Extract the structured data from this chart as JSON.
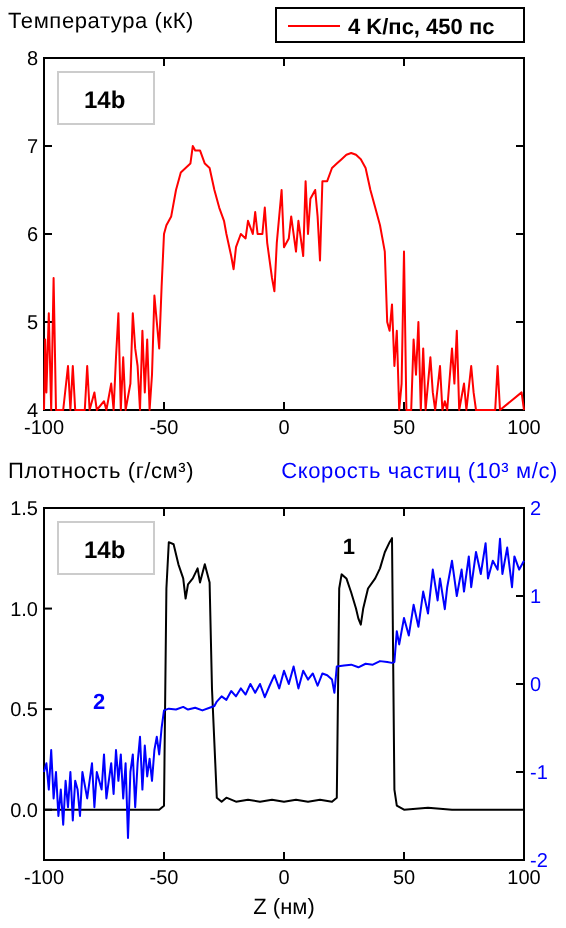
{
  "chart_data": [
    {
      "type": "line",
      "ylabel": "Температура (кК)",
      "annotations": [
        "14b"
      ],
      "legend": "top right",
      "xlim": [
        -100,
        100
      ],
      "xticks": [
        -100,
        -50,
        0,
        50,
        100
      ],
      "ylim": [
        4,
        8
      ],
      "yticks": [
        4,
        5,
        6,
        7,
        8
      ],
      "series": [
        {
          "name": "4 K/пс, 450 пс",
          "color": "#ff0000",
          "x": [
            -100,
            -99.5,
            -99,
            -98,
            -97,
            -96,
            -95,
            -92,
            -90,
            -89,
            -88,
            -87,
            -83,
            -82,
            -81,
            -79,
            -78,
            -75,
            -74,
            -72,
            -71,
            -70,
            -69,
            -68,
            -67,
            -66,
            -64,
            -63,
            -62,
            -61,
            -60,
            -59,
            -58,
            -57,
            -56,
            -55,
            -54,
            -53,
            -52,
            -51,
            -50,
            -49,
            -47,
            -45,
            -43,
            -41,
            -39,
            -38,
            -37,
            -35,
            -33,
            -31,
            -29,
            -27,
            -25,
            -24,
            -22,
            -21,
            -20,
            -18,
            -16,
            -15,
            -13,
            -12,
            -11,
            -9,
            -8,
            -7,
            -5,
            -4,
            -3,
            -1,
            0,
            2,
            3,
            5,
            6,
            8,
            9,
            10,
            11,
            13,
            14,
            15,
            16,
            18,
            20,
            22,
            24,
            26,
            28,
            30,
            32,
            34,
            36,
            38,
            40,
            42,
            43,
            44,
            45,
            46,
            47,
            48,
            49,
            50,
            51,
            53,
            54,
            55,
            56,
            57,
            58,
            59,
            61,
            62,
            63,
            65,
            66,
            67,
            68,
            70,
            71,
            72,
            73,
            75,
            76,
            78,
            79,
            80,
            88,
            89,
            90,
            99,
            100
          ],
          "values": [
            4.0,
            4.8,
            4.2,
            5.1,
            4.0,
            5.5,
            4.0,
            4.0,
            4.5,
            4.0,
            4.5,
            4.0,
            4.0,
            4.5,
            4.0,
            4.2,
            4.0,
            4.1,
            4.0,
            4.3,
            4.0,
            4.6,
            5.1,
            4.0,
            4.6,
            4.0,
            4.3,
            5.1,
            4.7,
            4.5,
            4.0,
            4.9,
            4.2,
            4.8,
            4.0,
            4.4,
            5.3,
            5.0,
            4.7,
            5.4,
            6.0,
            6.1,
            6.2,
            6.5,
            6.7,
            6.75,
            6.8,
            7.0,
            6.95,
            6.95,
            6.8,
            6.75,
            6.5,
            6.3,
            6.15,
            6.0,
            5.75,
            5.6,
            5.85,
            6.0,
            5.95,
            6.15,
            6.0,
            6.25,
            6.0,
            6.0,
            6.3,
            5.9,
            5.5,
            5.35,
            5.9,
            6.5,
            5.85,
            5.95,
            6.2,
            5.8,
            6.15,
            5.75,
            6.6,
            6.0,
            6.4,
            6.5,
            6.2,
            5.7,
            6.6,
            6.6,
            6.75,
            6.8,
            6.85,
            6.9,
            6.92,
            6.9,
            6.85,
            6.75,
            6.5,
            6.3,
            6.1,
            5.8,
            5.0,
            4.9,
            5.2,
            4.5,
            4.9,
            4.0,
            4.3,
            5.8,
            4.0,
            4.0,
            4.8,
            4.4,
            5.0,
            4.0,
            4.7,
            4.0,
            4.6,
            4.2,
            4.0,
            4.5,
            4.0,
            4.1,
            4.0,
            4.7,
            4.3,
            4.9,
            4.0,
            4.3,
            4.0,
            4.5,
            4.2,
            4.0,
            4.0,
            4.5,
            4.0,
            4.2,
            4.0
          ]
        }
      ]
    },
    {
      "type": "line",
      "xlabel": "Z (нм)",
      "ylabel": "Плотность (г/см³)",
      "y2label": "Скорость частиц (10³ м/с)",
      "annotations": [
        "14b"
      ],
      "xlim": [
        -100,
        100
      ],
      "xticks": [
        -100,
        -50,
        0,
        50,
        100
      ],
      "ylim": [
        -0.25,
        1.5
      ],
      "yticks": [
        {
          "value": 0,
          "label": "0.0"
        },
        {
          "value": 0.5,
          "label": "0.5"
        },
        {
          "value": 1,
          "label": "1.0"
        },
        {
          "value": 1.5,
          "label": "1.5"
        }
      ],
      "y2lim": [
        -2,
        2
      ],
      "y2ticks": [
        -2,
        -1,
        0,
        1,
        2
      ],
      "series": [
        {
          "name": "1",
          "color": "#000000",
          "x": [
            -100,
            -52,
            -50,
            -49,
            -48,
            -46,
            -44,
            -42,
            -41,
            -40,
            -38,
            -36,
            -35,
            -33,
            -31,
            -30,
            -28,
            -26,
            -24,
            -20,
            -15,
            -10,
            -5,
            0,
            5,
            10,
            15,
            20,
            22,
            23,
            24,
            26,
            28,
            30,
            31,
            32,
            33,
            35,
            38,
            40,
            42,
            44,
            45,
            46,
            47,
            50,
            60,
            70,
            100
          ],
          "values": [
            0.0,
            0.0,
            0.02,
            1.1,
            1.33,
            1.32,
            1.22,
            1.15,
            1.05,
            1.12,
            1.15,
            1.2,
            1.13,
            1.22,
            1.13,
            0.6,
            0.06,
            0.04,
            0.06,
            0.04,
            0.05,
            0.04,
            0.05,
            0.04,
            0.05,
            0.04,
            0.05,
            0.04,
            0.06,
            1.1,
            1.17,
            1.15,
            1.08,
            1.0,
            0.95,
            0.92,
            1.0,
            1.1,
            1.15,
            1.2,
            1.28,
            1.33,
            1.35,
            0.1,
            0.02,
            0.0,
            0.01,
            0.0,
            0.0
          ]
        },
        {
          "name": "2",
          "color": "#0000ff",
          "axis": "y2",
          "x": [
            -100,
            -99,
            -98,
            -97,
            -96,
            -95,
            -94,
            -93,
            -92,
            -91,
            -90,
            -89,
            -88,
            -87,
            -86,
            -85,
            -84,
            -82,
            -80,
            -79,
            -78,
            -76,
            -75,
            -74,
            -72,
            -71,
            -70,
            -69,
            -68,
            -67,
            -66,
            -65,
            -64,
            -63,
            -62,
            -61,
            -60,
            -59,
            -58,
            -57,
            -56,
            -55,
            -54,
            -53,
            -52,
            -51,
            -50,
            -48,
            -45,
            -42,
            -40,
            -37,
            -34,
            -31,
            -29,
            -28,
            -26,
            -24,
            -22,
            -20,
            -18,
            -16,
            -14,
            -12,
            -10,
            -8,
            -6,
            -4,
            -2,
            0,
            2,
            4,
            6,
            8,
            10,
            12,
            14,
            16,
            18,
            20,
            21,
            22,
            25,
            28,
            31,
            34,
            37,
            40,
            43,
            45,
            46,
            47,
            48,
            50,
            52,
            54,
            56,
            58,
            60,
            62,
            64,
            65,
            67,
            68,
            70,
            72,
            74,
            75,
            77,
            78,
            80,
            82,
            84,
            85,
            87,
            89,
            90,
            91,
            93,
            95,
            96,
            98,
            100
          ],
          "values": [
            -1.0,
            -0.9,
            -1.2,
            -0.75,
            -1.3,
            -1.0,
            -1.5,
            -1.2,
            -1.6,
            -1.1,
            -1.4,
            -1.0,
            -1.55,
            -1.1,
            -1.2,
            -1.5,
            -1.0,
            -1.3,
            -0.9,
            -1.4,
            -1.0,
            -1.2,
            -0.8,
            -1.3,
            -0.9,
            -1.25,
            -0.75,
            -1.1,
            -0.8,
            -1.3,
            -0.9,
            -1.75,
            -1.0,
            -0.8,
            -1.4,
            -0.9,
            -0.6,
            -1.2,
            -0.7,
            -1.05,
            -0.85,
            -1.1,
            -0.75,
            -0.6,
            -0.8,
            -0.5,
            -0.3,
            -0.28,
            -0.29,
            -0.26,
            -0.29,
            -0.27,
            -0.3,
            -0.27,
            -0.25,
            -0.2,
            -0.14,
            -0.18,
            -0.08,
            -0.14,
            -0.05,
            -0.12,
            0.0,
            -0.1,
            0.0,
            -0.15,
            -0.02,
            0.1,
            -0.05,
            0.15,
            0.0,
            0.2,
            -0.05,
            0.15,
            0.05,
            0.12,
            -0.02,
            0.12,
            0.1,
            0.05,
            -0.1,
            0.2,
            0.21,
            0.22,
            0.19,
            0.23,
            0.22,
            0.26,
            0.25,
            0.24,
            0.25,
            0.6,
            0.45,
            0.75,
            0.55,
            0.9,
            0.65,
            1.05,
            0.8,
            1.3,
            0.95,
            1.2,
            0.85,
            1.1,
            1.4,
            1.0,
            1.3,
            1.05,
            1.45,
            1.1,
            1.5,
            1.25,
            1.6,
            1.2,
            1.4,
            1.3,
            1.65,
            1.25,
            1.55,
            1.1,
            1.45,
            1.3,
            1.4
          ]
        }
      ]
    }
  ]
}
